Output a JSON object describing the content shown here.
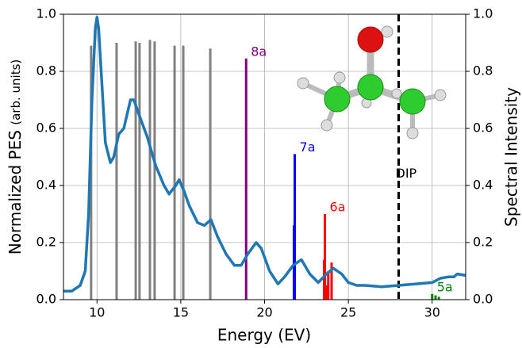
{
  "chart_data": {
    "type": "line",
    "xlabel": "Energy (EV)",
    "ylabel": "Normalized PES",
    "ylabel_units": "(arb. units)",
    "y2label": "Spectral Intensity",
    "xlim": [
      8,
      32
    ],
    "xticks": [
      10,
      15,
      20,
      25,
      30
    ],
    "ylim": [
      0,
      1
    ],
    "yticks": [
      {
        "value": 0,
        "label": "0.0"
      },
      0.2,
      0.4,
      0.6,
      0.8,
      {
        "value": 1,
        "label": "1.0"
      }
    ],
    "y2lim": [
      0,
      1
    ],
    "y2ticks": [
      {
        "value": 0,
        "label": "0.0"
      },
      0.2,
      0.4,
      0.6,
      0.8,
      {
        "value": 1,
        "label": "1.0"
      }
    ],
    "grid": true,
    "series": [
      {
        "color": "#1f77b4",
        "x": [
          8,
          8.5,
          9,
          9.3,
          9.5,
          9.7,
          9.9,
          10,
          10.1,
          10.3,
          10.5,
          10.8,
          11,
          11.3,
          11.6,
          12,
          12.2,
          12.5,
          13,
          13.5,
          14,
          14.3,
          14.7,
          14.9,
          15.2,
          15.5,
          16,
          16.4,
          16.8,
          17.2,
          17.7,
          18.2,
          18.6,
          19,
          19.5,
          19.8,
          20.3,
          20.8,
          21.2,
          21.7,
          22.2,
          22.7,
          23.2,
          23.7,
          24.1,
          24.6,
          25,
          25.5,
          26,
          27,
          28,
          29,
          30,
          30.5,
          31,
          31.3,
          31.5,
          32
        ],
        "values": [
          0.03,
          0.03,
          0.05,
          0.1,
          0.3,
          0.7,
          0.95,
          0.99,
          0.95,
          0.75,
          0.55,
          0.48,
          0.5,
          0.58,
          0.6,
          0.7,
          0.7,
          0.65,
          0.57,
          0.47,
          0.4,
          0.37,
          0.4,
          0.42,
          0.38,
          0.33,
          0.27,
          0.26,
          0.28,
          0.22,
          0.16,
          0.12,
          0.12,
          0.16,
          0.2,
          0.18,
          0.1,
          0.055,
          0.08,
          0.12,
          0.14,
          0.09,
          0.06,
          0.09,
          0.11,
          0.09,
          0.06,
          0.05,
          0.05,
          0.045,
          0.05,
          0.055,
          0.06,
          0.075,
          0.08,
          0.08,
          0.09,
          0.085
        ]
      }
    ],
    "sticks": [
      {
        "color": "#808080",
        "x": [
          9.65,
          11.17,
          12.31,
          12.54,
          13.16,
          13.44,
          14.63,
          15.15,
          16.76
        ],
        "values": [
          0.89,
          0.9,
          0.905,
          0.9,
          0.91,
          0.905,
          0.89,
          0.89,
          0.88
        ]
      },
      {
        "name": "8a",
        "color": "#800080",
        "x": [
          18.9
        ],
        "values": [
          0.845
        ]
      },
      {
        "name": "7a",
        "color": "#0000ff",
        "x": [
          21.75,
          21.8
        ],
        "values": [
          0.26,
          0.51
        ]
      },
      {
        "name": "6a",
        "color": "#ff0000",
        "x": [
          23.55,
          23.6,
          23.7,
          23.8,
          24.0
        ],
        "values": [
          0.14,
          0.3,
          0.05,
          0.1,
          0.13
        ]
      },
      {
        "name": "5a",
        "color": "#008000",
        "x": [
          30.0,
          30.2,
          30.4
        ],
        "values": [
          0.02,
          0.015,
          0.01
        ]
      }
    ],
    "vline": {
      "x": 28,
      "label": "DIP"
    }
  }
}
